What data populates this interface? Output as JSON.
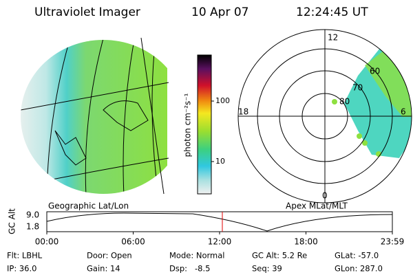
{
  "header": {
    "title": "Ultraviolet Imager",
    "date": "10 Apr 07",
    "time": "12:24:45 UT"
  },
  "geographic_panel": {
    "label": "Geographic Lat/Lon"
  },
  "colorbar": {
    "label": "photon cm⁻²s⁻¹",
    "ticks": [
      "100",
      "10"
    ]
  },
  "polar_panel": {
    "label": "Apex MLat/MLT",
    "mlt_labels": [
      "12",
      "18",
      "0",
      "6"
    ],
    "lat_labels": [
      "60",
      "70",
      "80"
    ]
  },
  "altitude_plot": {
    "axis_label": "GC Alt",
    "y_labels": [
      "9.0",
      "1.8"
    ],
    "x_labels": [
      "00:00",
      "06:00",
      "12:00",
      "18:00",
      "23:59"
    ]
  },
  "info": {
    "rows": [
      [
        "Flt: LBHL",
        "Door: Open",
        "Mode: Normal",
        "GC Alt: 5.2 Re",
        "GLat: -57.0"
      ],
      [
        "IP: 36.0",
        "Gain: 14",
        "Dsp:   -8.5",
        "Seq: 39",
        "GLon: 287.0"
      ]
    ]
  }
}
